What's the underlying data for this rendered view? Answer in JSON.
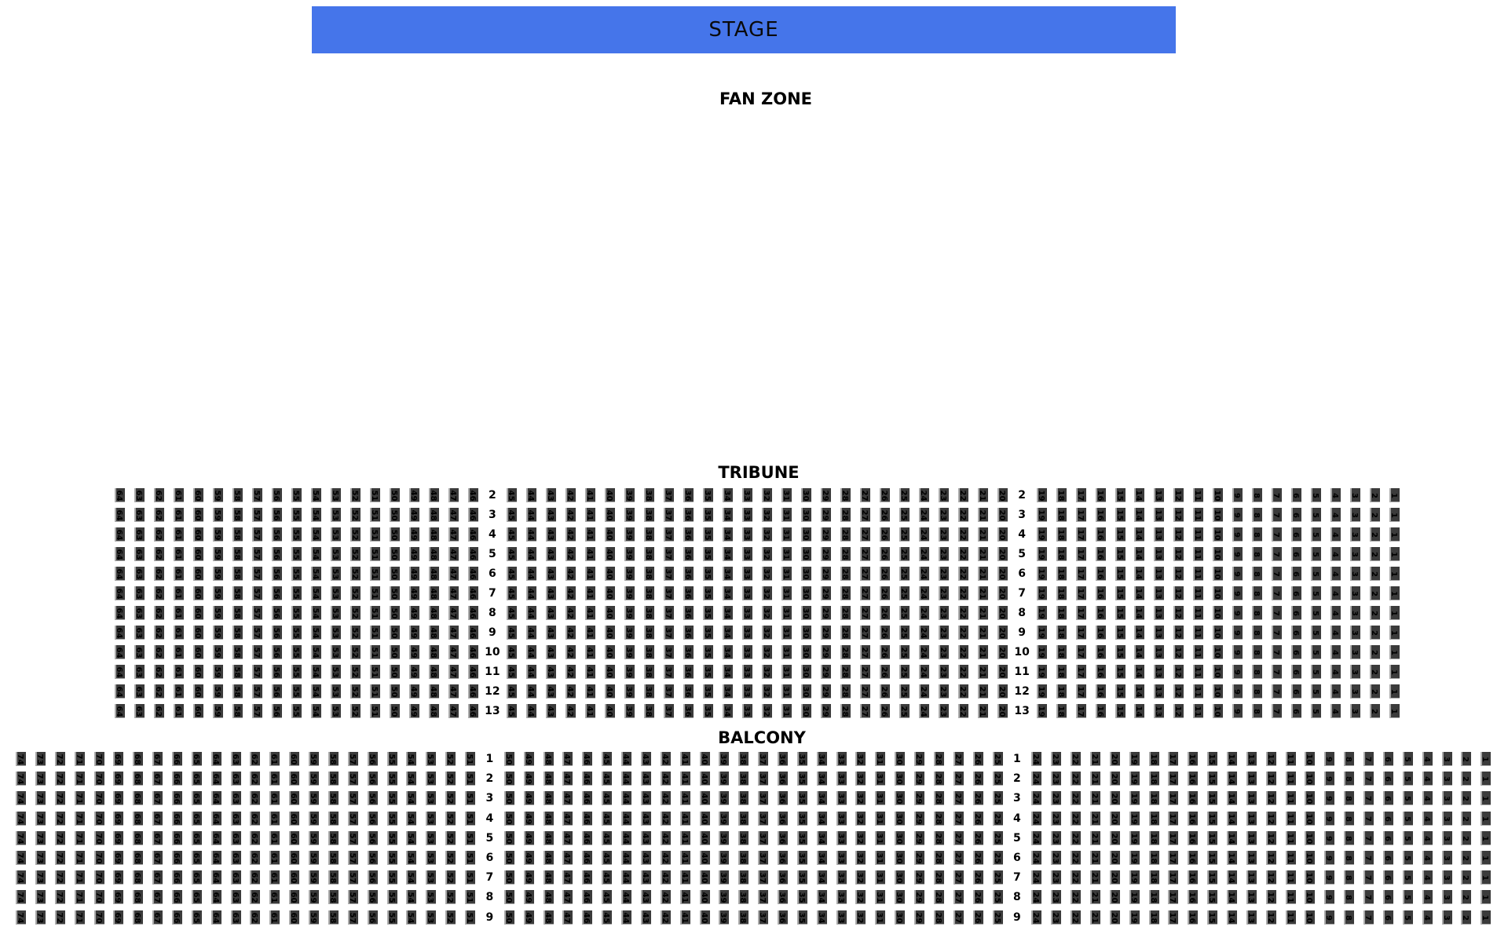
{
  "stage": {
    "label": "STAGE",
    "color": "#4575EA"
  },
  "fan_zone": {
    "label": "FAN ZONE"
  },
  "sections": [
    {
      "id": "tribune",
      "name": "TRIBUNE",
      "row_labels": [
        2,
        3,
        4,
        5,
        6,
        7,
        8,
        9,
        10,
        11,
        12,
        13
      ],
      "seat_blocks": [
        {
          "first_seat": 64,
          "last_seat": 46
        },
        {
          "first_seat": 45,
          "last_seat": 20
        },
        {
          "first_seat": 19,
          "last_seat": 1
        }
      ],
      "seats_per_row": 64
    },
    {
      "id": "balcony",
      "name": "BALCONY",
      "row_labels": [
        1,
        2,
        3,
        4,
        5,
        6,
        7,
        8,
        9
      ],
      "seat_blocks": [
        {
          "first_seat": 74,
          "last_seat": 51
        },
        {
          "first_seat": 50,
          "last_seat": 25
        },
        {
          "first_seat": 24,
          "last_seat": 1
        }
      ],
      "seats_per_row": 74
    }
  ],
  "seat_style": {
    "seat_color": "#3B3B3B",
    "seat_edge_color": "#A9A9A9",
    "number_color": "#000000"
  }
}
